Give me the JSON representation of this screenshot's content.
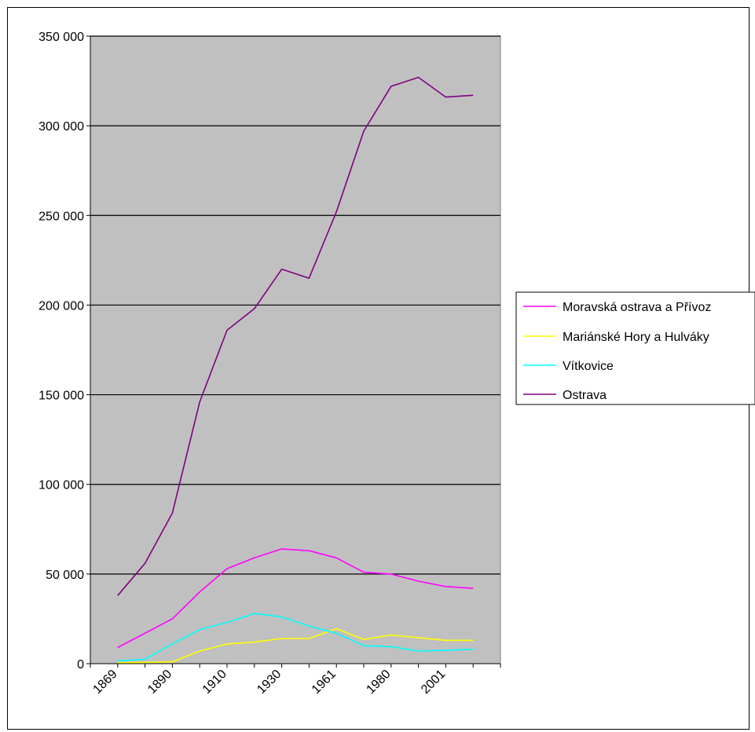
{
  "chart_data": {
    "type": "line",
    "title": "",
    "xlabel": "",
    "ylabel": "",
    "ylim": [
      0,
      350000
    ],
    "yticks": [
      0,
      50000,
      100000,
      150000,
      200000,
      250000,
      300000,
      350000
    ],
    "ytick_labels": [
      "0",
      "50 000",
      "100 000",
      "150 000",
      "200 000",
      "250 000",
      "300 000",
      "350 000"
    ],
    "xtick_labels": [
      "1869",
      "1890",
      "1910",
      "1930",
      "1961",
      "1980",
      "2001"
    ],
    "grid": true,
    "plot_background": "#c0c0c0",
    "legend_position": "right",
    "series": [
      {
        "name": "Moravská ostrava a Přívoz",
        "color": "#ff00ff",
        "values": [
          9000,
          17000,
          25000,
          40000,
          53000,
          59000,
          64000,
          63000,
          59000,
          51000,
          50000,
          46000,
          43000,
          42000
        ]
      },
      {
        "name": "Mariánské Hory a Hulváky",
        "color": "#ffff00",
        "values": [
          500,
          700,
          1000,
          7000,
          11000,
          12000,
          14000,
          14000,
          19500,
          13500,
          16000,
          14500,
          13000,
          13000
        ]
      },
      {
        "name": "Vítkovice",
        "color": "#00ffff",
        "values": [
          1500,
          2500,
          11000,
          19000,
          23000,
          28000,
          26000,
          21000,
          17000,
          10000,
          9500,
          7000,
          7500,
          8000
        ]
      },
      {
        "name": "Ostrava",
        "color": "#800080",
        "values": [
          38000,
          56000,
          84000,
          146000,
          186000,
          198000,
          220000,
          215000,
          252000,
          297000,
          322000,
          327000,
          316000,
          317000
        ]
      }
    ]
  }
}
